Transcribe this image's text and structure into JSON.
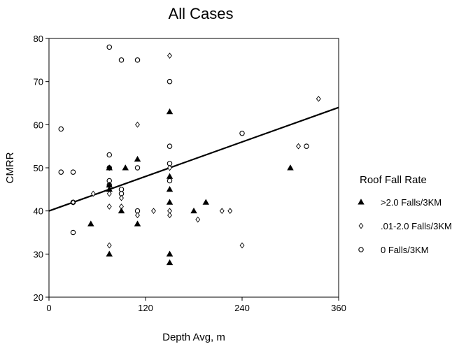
{
  "chart_data": {
    "type": "scatter",
    "title": "All Cases",
    "xlabel": "Depth Avg, m",
    "ylabel": "CMRR",
    "xlim": [
      0,
      360
    ],
    "ylim": [
      20,
      80
    ],
    "xticks": [
      0,
      120,
      240,
      360
    ],
    "xtick_labels": [
      "0",
      "120",
      "240",
      "360"
    ],
    "yticks": [
      20,
      30,
      40,
      50,
      60,
      70,
      80
    ],
    "ytick_labels": [
      "20",
      "30",
      "40",
      "50",
      "60",
      "70",
      "80"
    ],
    "grid": false,
    "legend": {
      "title": "Roof Fall Rate",
      "placement": "right"
    },
    "series": [
      {
        "name": ">2.0 Falls/3KM",
        "marker": "triangle-filled",
        "points": [
          [
            52,
            37
          ],
          [
            75,
            46
          ],
          [
            75,
            45
          ],
          [
            75,
            30
          ],
          [
            75,
            50
          ],
          [
            90,
            40
          ],
          [
            95,
            50
          ],
          [
            110,
            52
          ],
          [
            110,
            37
          ],
          [
            150,
            63
          ],
          [
            150,
            48
          ],
          [
            150,
            45
          ],
          [
            150,
            42
          ],
          [
            150,
            30
          ],
          [
            150,
            28
          ],
          [
            180,
            40
          ],
          [
            195,
            42
          ],
          [
            300,
            50
          ]
        ]
      },
      {
        "name": ".01-2.0 Falls/3KM",
        "marker": "diamond-open",
        "points": [
          [
            30,
            42
          ],
          [
            55,
            44
          ],
          [
            75,
            32
          ],
          [
            75,
            41
          ],
          [
            75,
            44
          ],
          [
            75,
            50
          ],
          [
            90,
            41
          ],
          [
            90,
            43
          ],
          [
            110,
            60
          ],
          [
            110,
            39
          ],
          [
            130,
            40
          ],
          [
            150,
            76
          ],
          [
            150,
            50
          ],
          [
            150,
            40
          ],
          [
            150,
            39
          ],
          [
            185,
            38
          ],
          [
            215,
            40
          ],
          [
            225,
            40
          ],
          [
            240,
            32
          ],
          [
            310,
            55
          ],
          [
            335,
            66
          ]
        ]
      },
      {
        "name": "0 Falls/3KM",
        "marker": "circle-open",
        "points": [
          [
            15,
            59
          ],
          [
            15,
            49
          ],
          [
            30,
            49
          ],
          [
            30,
            42
          ],
          [
            30,
            35
          ],
          [
            75,
            78
          ],
          [
            75,
            53
          ],
          [
            75,
            50
          ],
          [
            75,
            47
          ],
          [
            75,
            46
          ],
          [
            90,
            75
          ],
          [
            90,
            45
          ],
          [
            90,
            44
          ],
          [
            110,
            75
          ],
          [
            110,
            50
          ],
          [
            110,
            40
          ],
          [
            150,
            70
          ],
          [
            150,
            55
          ],
          [
            150,
            51
          ],
          [
            150,
            47
          ],
          [
            240,
            58
          ],
          [
            320,
            55
          ]
        ]
      }
    ],
    "trendline": {
      "x": [
        0,
        360
      ],
      "y": [
        40,
        64
      ]
    }
  }
}
